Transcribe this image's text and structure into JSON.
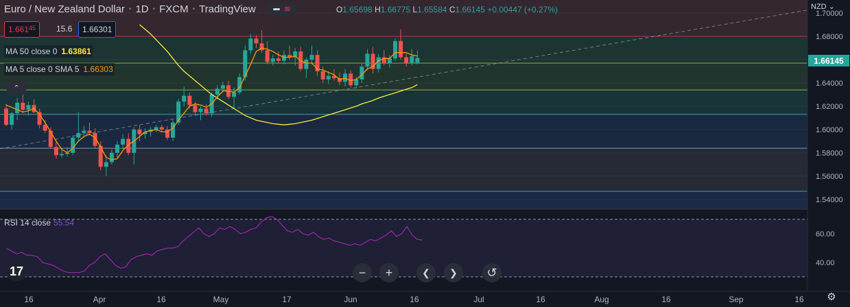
{
  "header": {
    "symbol": "Euro / New Zealand Dollar",
    "interval": "1D",
    "exchange": "FXCM",
    "source": "TradingView",
    "ohlc": {
      "o_label": "O",
      "o": "1.65698",
      "h_label": "H",
      "h": "1.66775",
      "l_label": "L",
      "l": "1.65584",
      "c_label": "C",
      "c": "1.66145",
      "change": "+0.00447 (+0.27%)"
    }
  },
  "quote": {
    "bid_main": "1.661",
    "bid_sup": "45",
    "spread": "15.6",
    "ask": "1.66301"
  },
  "indicators": {
    "ma50": {
      "label": "MA 50 close 0",
      "value": "1.63861"
    },
    "ma5": {
      "label": "MA 5 close 0 SMA 5",
      "value": "1.66303"
    },
    "rsi": {
      "label": "RSI 14 close",
      "value": "55.54"
    }
  },
  "axis": {
    "currency": "NZD",
    "last_price": "1.66145"
  },
  "logo_text": "17",
  "controls": {
    "zoom_out": "−",
    "zoom_in": "+",
    "scroll_left": "❮",
    "scroll_right": "❯",
    "reset": "↺",
    "collapse": "⌃",
    "settings": "⚙"
  },
  "colors": {
    "up": "#26a69a",
    "down": "#ef5350",
    "ma50": "#ffeb3b",
    "ma5": "#ff9800",
    "rsi": "#9c27b0"
  },
  "chart_data": [
    {
      "type": "candlestick",
      "title": "Euro / New Zealand Dollar",
      "ylabel": "NZD",
      "ylim": [
        1.53,
        1.7
      ],
      "y_ticks": [
        "1.54000",
        "1.56000",
        "1.58000",
        "1.60000",
        "1.62000",
        "1.64000",
        "1.66000",
        "1.68000",
        "1.70000"
      ],
      "x_ticks": [
        "16",
        "Apr",
        "16",
        "May",
        "17",
        "Jun",
        "16",
        "Jul",
        "16",
        "Aug",
        "16",
        "Sep",
        "16"
      ],
      "candles": [
        {
          "o": 1.618,
          "h": 1.622,
          "l": 1.603,
          "c": 1.604
        },
        {
          "o": 1.604,
          "h": 1.615,
          "l": 1.6,
          "c": 1.614
        },
        {
          "o": 1.614,
          "h": 1.627,
          "l": 1.608,
          "c": 1.623
        },
        {
          "o": 1.623,
          "h": 1.631,
          "l": 1.614,
          "c": 1.617
        },
        {
          "o": 1.617,
          "h": 1.624,
          "l": 1.612,
          "c": 1.621
        },
        {
          "o": 1.621,
          "h": 1.626,
          "l": 1.614,
          "c": 1.615
        },
        {
          "o": 1.615,
          "h": 1.618,
          "l": 1.601,
          "c": 1.604
        },
        {
          "o": 1.604,
          "h": 1.608,
          "l": 1.597,
          "c": 1.599
        },
        {
          "o": 1.599,
          "h": 1.602,
          "l": 1.584,
          "c": 1.585
        },
        {
          "o": 1.585,
          "h": 1.59,
          "l": 1.575,
          "c": 1.578
        },
        {
          "o": 1.578,
          "h": 1.584,
          "l": 1.576,
          "c": 1.579
        },
        {
          "o": 1.579,
          "h": 1.585,
          "l": 1.577,
          "c": 1.58
        },
        {
          "o": 1.58,
          "h": 1.595,
          "l": 1.578,
          "c": 1.593
        },
        {
          "o": 1.593,
          "h": 1.615,
          "l": 1.59,
          "c": 1.597
        },
        {
          "o": 1.597,
          "h": 1.603,
          "l": 1.593,
          "c": 1.599
        },
        {
          "o": 1.599,
          "h": 1.606,
          "l": 1.595,
          "c": 1.597
        },
        {
          "o": 1.597,
          "h": 1.601,
          "l": 1.584,
          "c": 1.586
        },
        {
          "o": 1.586,
          "h": 1.59,
          "l": 1.565,
          "c": 1.568
        },
        {
          "o": 1.568,
          "h": 1.578,
          "l": 1.56,
          "c": 1.572
        },
        {
          "o": 1.572,
          "h": 1.583,
          "l": 1.57,
          "c": 1.58
        },
        {
          "o": 1.58,
          "h": 1.59,
          "l": 1.576,
          "c": 1.587
        },
        {
          "o": 1.587,
          "h": 1.596,
          "l": 1.583,
          "c": 1.592
        },
        {
          "o": 1.592,
          "h": 1.597,
          "l": 1.578,
          "c": 1.58
        },
        {
          "o": 1.58,
          "h": 1.602,
          "l": 1.57,
          "c": 1.6
        },
        {
          "o": 1.6,
          "h": 1.604,
          "l": 1.59,
          "c": 1.596
        },
        {
          "o": 1.596,
          "h": 1.601,
          "l": 1.592,
          "c": 1.598
        },
        {
          "o": 1.598,
          "h": 1.602,
          "l": 1.594,
          "c": 1.6
        },
        {
          "o": 1.6,
          "h": 1.604,
          "l": 1.598,
          "c": 1.602
        },
        {
          "o": 1.602,
          "h": 1.604,
          "l": 1.598,
          "c": 1.6
        },
        {
          "o": 1.6,
          "h": 1.603,
          "l": 1.591,
          "c": 1.593
        },
        {
          "o": 1.593,
          "h": 1.608,
          "l": 1.59,
          "c": 1.606
        },
        {
          "o": 1.606,
          "h": 1.626,
          "l": 1.604,
          "c": 1.624
        },
        {
          "o": 1.624,
          "h": 1.637,
          "l": 1.62,
          "c": 1.629
        },
        {
          "o": 1.629,
          "h": 1.632,
          "l": 1.618,
          "c": 1.621
        },
        {
          "o": 1.621,
          "h": 1.624,
          "l": 1.612,
          "c": 1.615
        },
        {
          "o": 1.615,
          "h": 1.62,
          "l": 1.608,
          "c": 1.618
        },
        {
          "o": 1.618,
          "h": 1.622,
          "l": 1.612,
          "c": 1.614
        },
        {
          "o": 1.614,
          "h": 1.632,
          "l": 1.611,
          "c": 1.63
        },
        {
          "o": 1.63,
          "h": 1.638,
          "l": 1.626,
          "c": 1.635
        },
        {
          "o": 1.635,
          "h": 1.641,
          "l": 1.632,
          "c": 1.638
        },
        {
          "o": 1.638,
          "h": 1.642,
          "l": 1.626,
          "c": 1.628
        },
        {
          "o": 1.628,
          "h": 1.636,
          "l": 1.618,
          "c": 1.632
        },
        {
          "o": 1.632,
          "h": 1.648,
          "l": 1.63,
          "c": 1.645
        },
        {
          "o": 1.645,
          "h": 1.672,
          "l": 1.642,
          "c": 1.668
        },
        {
          "o": 1.668,
          "h": 1.682,
          "l": 1.665,
          "c": 1.678
        },
        {
          "o": 1.678,
          "h": 1.681,
          "l": 1.67,
          "c": 1.674
        },
        {
          "o": 1.674,
          "h": 1.685,
          "l": 1.666,
          "c": 1.668
        },
        {
          "o": 1.668,
          "h": 1.676,
          "l": 1.656,
          "c": 1.658
        },
        {
          "o": 1.658,
          "h": 1.664,
          "l": 1.655,
          "c": 1.661
        },
        {
          "o": 1.661,
          "h": 1.667,
          "l": 1.657,
          "c": 1.659
        },
        {
          "o": 1.659,
          "h": 1.668,
          "l": 1.656,
          "c": 1.664
        },
        {
          "o": 1.664,
          "h": 1.672,
          "l": 1.66,
          "c": 1.662
        },
        {
          "o": 1.662,
          "h": 1.67,
          "l": 1.655,
          "c": 1.667
        },
        {
          "o": 1.667,
          "h": 1.671,
          "l": 1.65,
          "c": 1.652
        },
        {
          "o": 1.652,
          "h": 1.662,
          "l": 1.644,
          "c": 1.66
        },
        {
          "o": 1.66,
          "h": 1.672,
          "l": 1.656,
          "c": 1.664
        },
        {
          "o": 1.664,
          "h": 1.668,
          "l": 1.646,
          "c": 1.65
        },
        {
          "o": 1.65,
          "h": 1.654,
          "l": 1.64,
          "c": 1.643
        },
        {
          "o": 1.643,
          "h": 1.65,
          "l": 1.639,
          "c": 1.646
        },
        {
          "o": 1.646,
          "h": 1.652,
          "l": 1.642,
          "c": 1.644
        },
        {
          "o": 1.644,
          "h": 1.649,
          "l": 1.638,
          "c": 1.641
        },
        {
          "o": 1.641,
          "h": 1.652,
          "l": 1.637,
          "c": 1.648
        },
        {
          "o": 1.648,
          "h": 1.651,
          "l": 1.636,
          "c": 1.638
        },
        {
          "o": 1.638,
          "h": 1.645,
          "l": 1.635,
          "c": 1.643
        },
        {
          "o": 1.643,
          "h": 1.657,
          "l": 1.64,
          "c": 1.654
        },
        {
          "o": 1.654,
          "h": 1.669,
          "l": 1.651,
          "c": 1.665
        },
        {
          "o": 1.665,
          "h": 1.671,
          "l": 1.648,
          "c": 1.652
        },
        {
          "o": 1.652,
          "h": 1.665,
          "l": 1.649,
          "c": 1.662
        },
        {
          "o": 1.662,
          "h": 1.668,
          "l": 1.655,
          "c": 1.657
        },
        {
          "o": 1.657,
          "h": 1.664,
          "l": 1.653,
          "c": 1.661
        },
        {
          "o": 1.661,
          "h": 1.678,
          "l": 1.659,
          "c": 1.676
        },
        {
          "o": 1.676,
          "h": 1.686,
          "l": 1.66,
          "c": 1.662
        },
        {
          "o": 1.662,
          "h": 1.665,
          "l": 1.654,
          "c": 1.657
        },
        {
          "o": 1.657,
          "h": 1.669,
          "l": 1.655,
          "c": 1.663
        },
        {
          "o": 1.65698,
          "h": 1.66775,
          "l": 1.65584,
          "c": 1.66145
        }
      ],
      "ma50": [
        1.69,
        1.686,
        1.682,
        1.677,
        1.672,
        1.667,
        1.661,
        1.655,
        1.65,
        1.646,
        1.642,
        1.638,
        1.634,
        1.63,
        1.627,
        1.624,
        1.621,
        1.618,
        1.615,
        1.612,
        1.61,
        1.608,
        1.607,
        1.606,
        1.605,
        1.6045,
        1.604,
        1.6045,
        1.605,
        1.606,
        1.607,
        1.608,
        1.6095,
        1.611,
        1.6125,
        1.614,
        1.6155,
        1.617,
        1.6185,
        1.62,
        1.622,
        1.6235,
        1.625,
        1.627,
        1.6285,
        1.63,
        1.6315,
        1.633,
        1.6345,
        1.636,
        1.63861
      ],
      "ma5": [
        1.621,
        1.619,
        1.617,
        1.615,
        1.616,
        1.618,
        1.613,
        1.606,
        1.598,
        1.59,
        1.583,
        1.58,
        1.584,
        1.59,
        1.594,
        1.596,
        1.593,
        1.585,
        1.576,
        1.574,
        1.575,
        1.582,
        1.587,
        1.59,
        1.594,
        1.598,
        1.599,
        1.6,
        1.598,
        1.598,
        1.601,
        1.608,
        1.614,
        1.62,
        1.622,
        1.621,
        1.619,
        1.622,
        1.628,
        1.633,
        1.633,
        1.632,
        1.636,
        1.646,
        1.656,
        1.667,
        1.67,
        1.669,
        1.667,
        1.664,
        1.662,
        1.662,
        1.663,
        1.659,
        1.657,
        1.657,
        1.652,
        1.651,
        1.649,
        1.647,
        1.643,
        1.644,
        1.642,
        1.643,
        1.647,
        1.652,
        1.654,
        1.659,
        1.661,
        1.661,
        1.666,
        1.666,
        1.666,
        1.664,
        1.66303
      ],
      "levels": [
        1.68,
        1.657,
        1.634,
        1.613,
        1.584,
        1.547
      ]
    },
    {
      "type": "line",
      "title": "RSI 14 close",
      "ylim": [
        28,
        75
      ],
      "y_ticks": [
        "40.00",
        "60.00"
      ],
      "bands": [
        70,
        30
      ],
      "values": [
        50,
        48,
        46,
        47,
        45,
        45,
        44,
        40,
        39,
        38,
        36,
        34,
        33,
        33,
        33,
        34,
        38,
        40,
        44,
        46,
        42,
        38,
        36,
        37,
        42,
        44,
        45,
        46,
        45,
        48,
        49,
        50,
        50,
        51,
        55,
        58,
        61,
        64,
        60,
        58,
        60,
        64,
        63,
        65,
        63,
        60,
        61,
        63,
        64,
        68,
        71,
        72,
        70,
        66,
        62,
        61,
        63,
        60,
        59,
        61,
        58,
        56,
        57,
        55,
        54,
        53,
        52,
        53,
        52,
        54,
        56,
        55,
        57,
        59,
        62,
        58,
        60,
        65,
        59,
        56,
        55.54
      ]
    }
  ]
}
